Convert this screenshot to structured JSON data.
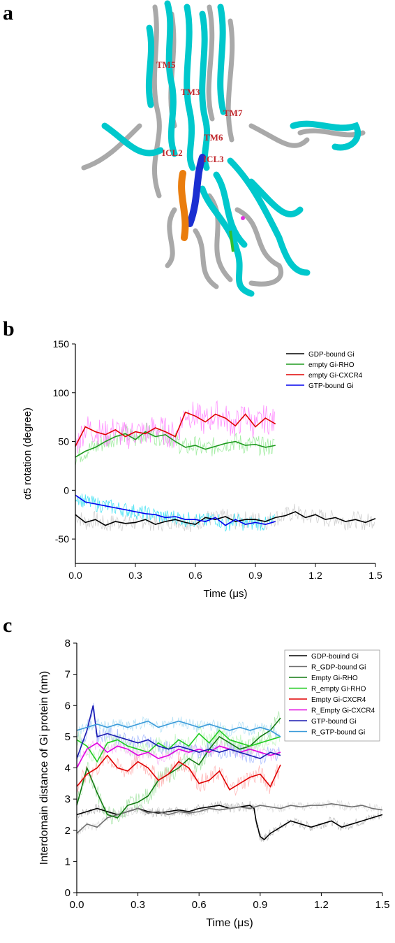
{
  "panels": {
    "a": {
      "letter": "a",
      "labels": [
        "TM5",
        "TM3",
        "TM7",
        "TM6",
        "ICL2",
        "ICL3"
      ],
      "colors": {
        "receptor": "#00c8cc",
        "gprotein": "#a9a9a9",
        "helix_blue": "#1a2fd1",
        "helix_orange": "#ea7d0d",
        "label": "#c0282d"
      }
    },
    "b": {
      "letter": "b"
    },
    "c": {
      "letter": "c"
    }
  },
  "chart_data": [
    {
      "id": "b",
      "type": "line",
      "xlabel": "Time (μs)",
      "ylabel": "α5 rotation (degree)",
      "xlim": [
        0.0,
        1.5
      ],
      "ylim": [
        -75,
        150
      ],
      "xticks": [
        "0.0",
        "0.3",
        "0.6",
        "0.9",
        "1.2",
        "1.5"
      ],
      "yticks": [
        "-50",
        "0",
        "50",
        "100",
        "150"
      ],
      "xtick_values": [
        0.0,
        0.3,
        0.6,
        0.9,
        1.2,
        1.5
      ],
      "ytick_values": [
        -50,
        0,
        50,
        100,
        150
      ],
      "legend_position": "top-right",
      "series": [
        {
          "name": "GDP-bound Gi",
          "color": "#000000",
          "raw_color": "#c8c8c8",
          "noise": 9,
          "x": [
            0.0,
            0.05,
            0.1,
            0.15,
            0.2,
            0.25,
            0.3,
            0.35,
            0.4,
            0.45,
            0.5,
            0.55,
            0.6,
            0.65,
            0.7,
            0.75,
            0.8,
            0.85,
            0.9,
            0.95,
            1.0,
            1.05,
            1.1,
            1.15,
            1.2,
            1.25,
            1.3,
            1.35,
            1.4,
            1.45,
            1.5
          ],
          "y": [
            -25,
            -33,
            -30,
            -36,
            -32,
            -34,
            -33,
            -30,
            -35,
            -32,
            -30,
            -33,
            -35,
            -28,
            -30,
            -27,
            -32,
            -30,
            -30,
            -32,
            -28,
            -26,
            -22,
            -28,
            -25,
            -30,
            -28,
            -32,
            -30,
            -33,
            -29
          ]
        },
        {
          "name": "empty Gi-RHO",
          "color": "#1f9a1f",
          "raw_color": "#8fe88f",
          "noise": 10,
          "x": [
            0.0,
            0.05,
            0.1,
            0.15,
            0.2,
            0.25,
            0.3,
            0.35,
            0.4,
            0.45,
            0.5,
            0.55,
            0.6,
            0.65,
            0.7,
            0.75,
            0.8,
            0.85,
            0.9,
            0.95,
            1.0
          ],
          "y": [
            34,
            40,
            44,
            50,
            55,
            58,
            52,
            60,
            55,
            57,
            50,
            44,
            46,
            42,
            45,
            48,
            50,
            46,
            47,
            44,
            46
          ]
        },
        {
          "name": "empty Gi-CXCR4",
          "color": "#e00000",
          "raw_color": "#ff73ff",
          "noise": 15,
          "x": [
            0.0,
            0.05,
            0.1,
            0.15,
            0.2,
            0.25,
            0.3,
            0.35,
            0.4,
            0.45,
            0.5,
            0.55,
            0.6,
            0.65,
            0.7,
            0.75,
            0.8,
            0.85,
            0.9,
            0.95,
            1.0
          ],
          "y": [
            45,
            65,
            60,
            57,
            62,
            55,
            60,
            58,
            64,
            60,
            55,
            80,
            76,
            70,
            78,
            74,
            66,
            78,
            65,
            74,
            68
          ]
        },
        {
          "name": "GTP-bound Gi",
          "color": "#0000ee",
          "raw_color": "#22dcf0",
          "noise": 8,
          "x": [
            0.0,
            0.05,
            0.1,
            0.15,
            0.2,
            0.25,
            0.3,
            0.35,
            0.4,
            0.45,
            0.5,
            0.55,
            0.6,
            0.65,
            0.7,
            0.75,
            0.8,
            0.85,
            0.9,
            0.95,
            1.0
          ],
          "y": [
            -5,
            -12,
            -14,
            -16,
            -18,
            -20,
            -22,
            -24,
            -25,
            -28,
            -27,
            -30,
            -30,
            -32,
            -28,
            -36,
            -30,
            -35,
            -33,
            -35,
            -32
          ]
        }
      ]
    },
    {
      "id": "c",
      "type": "line",
      "xlabel": "Time (μs)",
      "ylabel": "Interdomain distance of Gi protein (nm)",
      "xlim": [
        0.0,
        1.5
      ],
      "ylim": [
        0,
        8
      ],
      "xticks": [
        "0.0",
        "0.3",
        "0.6",
        "0.9",
        "1.2",
        "1.5"
      ],
      "yticks": [
        "0",
        "1",
        "2",
        "3",
        "4",
        "5",
        "6",
        "7",
        "8"
      ],
      "xtick_values": [
        0.0,
        0.3,
        0.6,
        0.9,
        1.2,
        1.5
      ],
      "ytick_values": [
        0,
        1,
        2,
        3,
        4,
        5,
        6,
        7,
        8
      ],
      "legend_position": "top-right",
      "series": [
        {
          "name": "GDP-bouind Gi",
          "color": "#000000",
          "raw_color": "#b0b0b0",
          "noise": 0.15,
          "x": [
            0.0,
            0.05,
            0.1,
            0.15,
            0.2,
            0.25,
            0.3,
            0.35,
            0.4,
            0.45,
            0.5,
            0.55,
            0.6,
            0.65,
            0.7,
            0.75,
            0.8,
            0.85,
            0.87,
            0.88,
            0.9,
            0.92,
            0.95,
            1.0,
            1.05,
            1.1,
            1.15,
            1.2,
            1.25,
            1.3,
            1.35,
            1.4,
            1.45,
            1.5
          ],
          "y": [
            2.5,
            2.6,
            2.7,
            2.6,
            2.5,
            2.6,
            2.7,
            2.6,
            2.55,
            2.6,
            2.65,
            2.6,
            2.7,
            2.75,
            2.8,
            2.7,
            2.75,
            2.8,
            2.7,
            2.3,
            1.8,
            1.7,
            1.9,
            2.1,
            2.3,
            2.2,
            2.1,
            2.2,
            2.3,
            2.1,
            2.2,
            2.3,
            2.4,
            2.5
          ]
        },
        {
          "name": "R_GDP-bound Gi",
          "color": "#707070",
          "raw_color": "#d8d8d8",
          "noise": 0.15,
          "x": [
            0.0,
            0.05,
            0.1,
            0.15,
            0.2,
            0.25,
            0.3,
            0.35,
            0.4,
            0.45,
            0.5,
            0.55,
            0.6,
            0.65,
            0.7,
            0.75,
            0.8,
            0.85,
            0.9,
            0.95,
            1.0,
            1.05,
            1.1,
            1.15,
            1.2,
            1.25,
            1.3,
            1.35,
            1.4,
            1.45,
            1.5
          ],
          "y": [
            1.9,
            2.2,
            2.1,
            2.4,
            2.5,
            2.6,
            2.7,
            2.55,
            2.6,
            2.5,
            2.6,
            2.55,
            2.6,
            2.7,
            2.65,
            2.7,
            2.75,
            2.7,
            2.8,
            2.75,
            2.7,
            2.8,
            2.75,
            2.8,
            2.8,
            2.85,
            2.8,
            2.75,
            2.8,
            2.7,
            2.65
          ]
        },
        {
          "name": "Empty Gi-RHO",
          "color": "#127a12",
          "raw_color": "#9fe29f",
          "noise": 0.3,
          "x": [
            0.0,
            0.05,
            0.1,
            0.15,
            0.2,
            0.25,
            0.3,
            0.35,
            0.4,
            0.45,
            0.5,
            0.55,
            0.6,
            0.65,
            0.7,
            0.75,
            0.8,
            0.85,
            0.9,
            0.95,
            1.0
          ],
          "y": [
            2.8,
            4.0,
            3.2,
            2.5,
            2.4,
            2.8,
            2.9,
            3.1,
            3.6,
            3.8,
            4.0,
            4.3,
            4.1,
            4.6,
            5.0,
            4.8,
            4.6,
            4.7,
            5.0,
            5.2,
            5.6
          ]
        },
        {
          "name": "R_empty Gi-RHO",
          "color": "#22cc22",
          "raw_color": "#b8f5b8",
          "noise": 0.3,
          "x": [
            0.0,
            0.05,
            0.1,
            0.15,
            0.2,
            0.25,
            0.3,
            0.35,
            0.4,
            0.45,
            0.5,
            0.55,
            0.6,
            0.65,
            0.7,
            0.75,
            0.8,
            0.85,
            0.9,
            0.95,
            1.0
          ],
          "y": [
            4.9,
            4.7,
            4.2,
            4.8,
            4.9,
            4.7,
            4.6,
            4.5,
            4.8,
            4.6,
            4.9,
            4.7,
            5.1,
            4.8,
            5.2,
            4.9,
            4.8,
            4.7,
            4.8,
            4.9,
            5.0
          ]
        },
        {
          "name": "Empty Gi-CXCR4",
          "color": "#e00000",
          "raw_color": "#ffaaaa",
          "noise": 0.3,
          "x": [
            0.0,
            0.05,
            0.1,
            0.15,
            0.2,
            0.25,
            0.3,
            0.35,
            0.4,
            0.45,
            0.5,
            0.55,
            0.6,
            0.65,
            0.7,
            0.75,
            0.8,
            0.85,
            0.9,
            0.95,
            1.0
          ],
          "y": [
            3.4,
            3.8,
            4.0,
            4.4,
            4.0,
            3.9,
            4.2,
            4.0,
            3.6,
            3.8,
            4.2,
            4.0,
            3.5,
            3.6,
            3.9,
            3.3,
            3.5,
            3.7,
            3.8,
            3.4,
            4.1
          ]
        },
        {
          "name": "R_Empty Gi-CXCR4",
          "color": "#e000e0",
          "raw_color": "#f5b2f5",
          "noise": 0.2,
          "x": [
            0.0,
            0.05,
            0.1,
            0.15,
            0.2,
            0.25,
            0.3,
            0.35,
            0.4,
            0.45,
            0.5,
            0.55,
            0.6,
            0.65,
            0.7,
            0.75,
            0.8,
            0.85,
            0.9,
            0.95,
            1.0
          ],
          "y": [
            4.0,
            4.6,
            4.8,
            4.5,
            4.7,
            4.6,
            4.4,
            4.5,
            4.3,
            4.4,
            4.6,
            4.5,
            4.6,
            4.5,
            4.7,
            4.6,
            4.5,
            4.6,
            4.5,
            4.4,
            4.5
          ]
        },
        {
          "name": "GTP-bound Gi",
          "color": "#1a1ab0",
          "raw_color": "#9ab0ff",
          "noise": 0.25,
          "x": [
            0.0,
            0.05,
            0.08,
            0.1,
            0.15,
            0.2,
            0.25,
            0.3,
            0.35,
            0.4,
            0.45,
            0.5,
            0.55,
            0.6,
            0.65,
            0.7,
            0.75,
            0.8,
            0.85,
            0.9,
            0.95,
            1.0
          ],
          "y": [
            4.3,
            5.2,
            6.0,
            5.0,
            5.1,
            5.0,
            4.9,
            4.8,
            4.9,
            4.7,
            4.6,
            4.7,
            4.6,
            4.5,
            4.6,
            4.5,
            4.6,
            4.5,
            4.4,
            4.3,
            4.5,
            4.4
          ]
        },
        {
          "name": "R_GTP-bound Gi",
          "color": "#3a9ad9",
          "raw_color": "#a8dcf5",
          "noise": 0.2,
          "x": [
            0.0,
            0.05,
            0.1,
            0.15,
            0.2,
            0.25,
            0.3,
            0.35,
            0.4,
            0.45,
            0.5,
            0.55,
            0.6,
            0.65,
            0.7,
            0.75,
            0.8,
            0.85,
            0.9,
            0.95,
            1.0
          ],
          "y": [
            5.2,
            5.3,
            5.4,
            5.3,
            5.4,
            5.3,
            5.4,
            5.5,
            5.3,
            5.4,
            5.5,
            5.4,
            5.3,
            5.4,
            5.3,
            5.2,
            5.3,
            5.2,
            5.3,
            5.2,
            5.0
          ]
        }
      ]
    }
  ]
}
